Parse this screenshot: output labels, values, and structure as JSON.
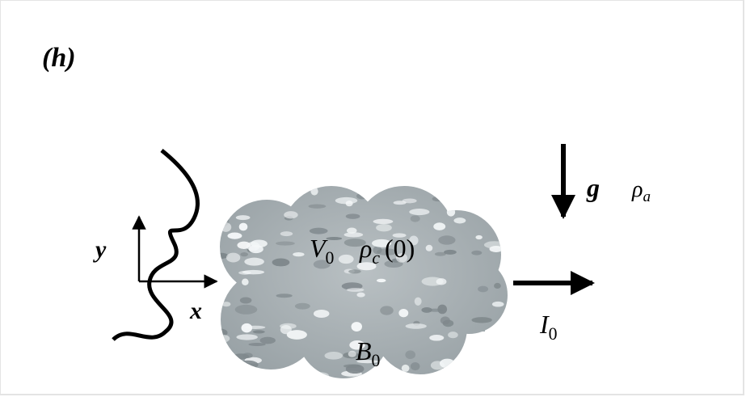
{
  "panel_label": "(h)",
  "axes": {
    "y": "y",
    "x": "x"
  },
  "cloud": {
    "velocity": {
      "base": "V",
      "sub": "0"
    },
    "density": {
      "base": "ρ",
      "sub": "c",
      "arg": "(0)"
    },
    "field": {
      "base": "B",
      "sub": "0"
    }
  },
  "gravity": {
    "symbol": "g",
    "ambient_density": {
      "base": "ρ",
      "sub": "a"
    }
  },
  "current": {
    "base": "I",
    "sub": "0"
  }
}
